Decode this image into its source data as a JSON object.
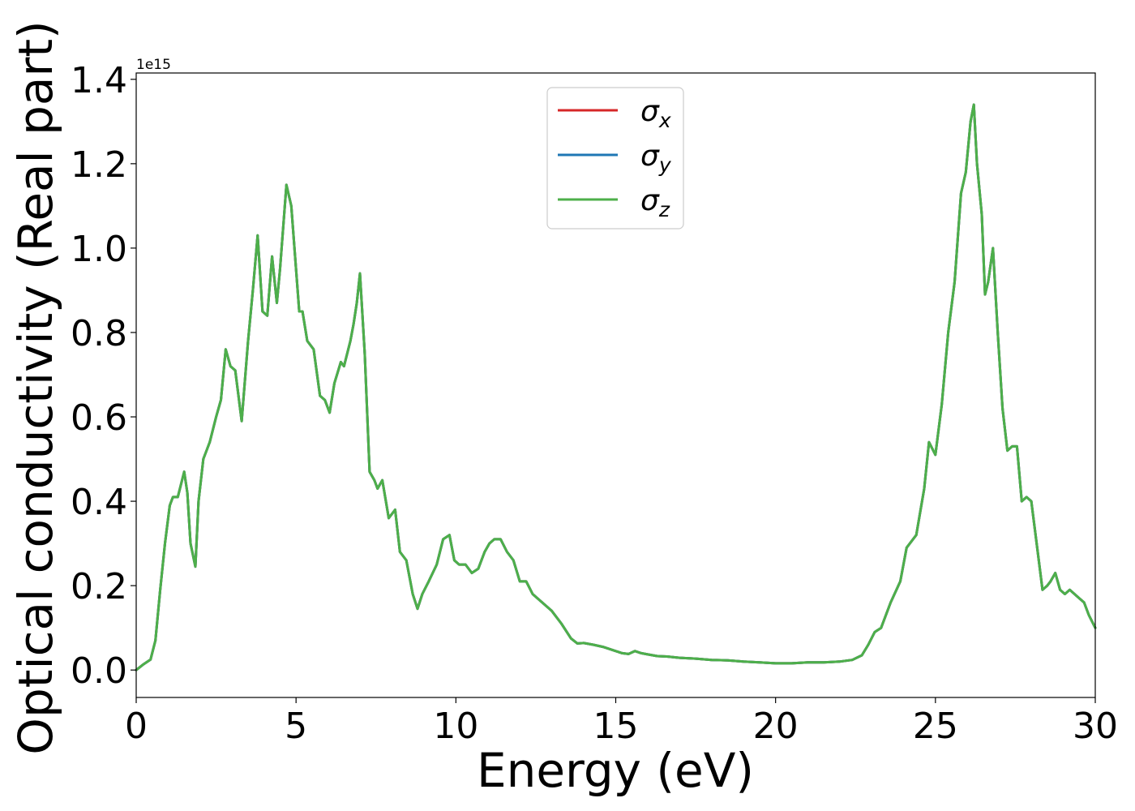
{
  "chart_data": {
    "type": "line",
    "xlabel": "Energy (eV)",
    "ylabel": "Optical conductivity (Real part)",
    "y_offset_label": "1e15",
    "xlim": [
      0,
      30
    ],
    "ylim": [
      -0.065,
      1.415
    ],
    "y_unit_multiplier": 1000000000000000.0,
    "xticks": [
      0,
      5,
      10,
      15,
      20,
      25,
      30
    ],
    "yticks": [
      0.0,
      0.2,
      0.4,
      0.6,
      0.8,
      1.0,
      1.2,
      1.4
    ],
    "ytick_labels": [
      "0.0",
      "0.2",
      "0.4",
      "0.6",
      "0.8",
      "1.0",
      "1.2",
      "1.4"
    ],
    "grid": false,
    "legend_position": "top-center",
    "x": [
      0.0,
      0.2,
      0.45,
      0.6,
      0.75,
      0.9,
      1.05,
      1.15,
      1.3,
      1.5,
      1.6,
      1.7,
      1.85,
      1.95,
      2.1,
      2.3,
      2.5,
      2.65,
      2.8,
      2.95,
      3.1,
      3.3,
      3.5,
      3.65,
      3.8,
      3.95,
      4.1,
      4.25,
      4.4,
      4.5,
      4.7,
      4.85,
      4.95,
      5.1,
      5.2,
      5.35,
      5.55,
      5.75,
      5.9,
      6.05,
      6.2,
      6.4,
      6.5,
      6.7,
      6.8,
      6.9,
      7.0,
      7.15,
      7.3,
      7.45,
      7.55,
      7.7,
      7.9,
      8.1,
      8.25,
      8.45,
      8.65,
      8.8,
      8.95,
      9.15,
      9.4,
      9.6,
      9.8,
      9.95,
      10.1,
      10.3,
      10.5,
      10.7,
      10.9,
      11.05,
      11.2,
      11.4,
      11.6,
      11.8,
      12.0,
      12.2,
      12.4,
      12.7,
      13.0,
      13.3,
      13.6,
      13.8,
      14.0,
      14.3,
      14.6,
      15.0,
      15.2,
      15.4,
      15.6,
      15.8,
      16.0,
      16.3,
      16.6,
      17.0,
      17.5,
      18.0,
      18.5,
      19.0,
      19.5,
      20.0,
      20.5,
      21.0,
      21.5,
      22.0,
      22.4,
      22.7,
      22.9,
      23.1,
      23.3,
      23.6,
      23.9,
      24.1,
      24.4,
      24.65,
      24.8,
      25.0,
      25.2,
      25.4,
      25.6,
      25.8,
      25.95,
      26.1,
      26.2,
      26.3,
      26.45,
      26.55,
      26.65,
      26.8,
      26.95,
      27.1,
      27.25,
      27.4,
      27.55,
      27.7,
      27.85,
      28.0,
      28.2,
      28.35,
      28.5,
      28.6,
      28.75,
      28.9,
      29.05,
      29.2,
      29.35,
      29.5,
      29.65,
      29.8,
      30.0
    ],
    "series": [
      {
        "name": "σx",
        "color": "#d62728",
        "values": [
          0.0,
          0.012,
          0.025,
          0.07,
          0.19,
          0.3,
          0.39,
          0.41,
          0.41,
          0.47,
          0.42,
          0.3,
          0.245,
          0.4,
          0.5,
          0.54,
          0.6,
          0.64,
          0.76,
          0.72,
          0.71,
          0.59,
          0.78,
          0.9,
          1.03,
          0.85,
          0.84,
          0.98,
          0.87,
          0.95,
          1.15,
          1.1,
          1.0,
          0.85,
          0.85,
          0.78,
          0.76,
          0.65,
          0.64,
          0.61,
          0.68,
          0.73,
          0.72,
          0.78,
          0.82,
          0.87,
          0.94,
          0.75,
          0.47,
          0.45,
          0.43,
          0.45,
          0.36,
          0.38,
          0.28,
          0.26,
          0.18,
          0.145,
          0.18,
          0.21,
          0.25,
          0.31,
          0.32,
          0.26,
          0.25,
          0.25,
          0.23,
          0.24,
          0.28,
          0.3,
          0.31,
          0.31,
          0.28,
          0.26,
          0.21,
          0.21,
          0.18,
          0.16,
          0.14,
          0.11,
          0.075,
          0.063,
          0.064,
          0.06,
          0.055,
          0.045,
          0.04,
          0.038,
          0.045,
          0.04,
          0.037,
          0.033,
          0.032,
          0.029,
          0.027,
          0.024,
          0.023,
          0.02,
          0.018,
          0.016,
          0.016,
          0.018,
          0.018,
          0.02,
          0.024,
          0.035,
          0.06,
          0.09,
          0.1,
          0.16,
          0.21,
          0.29,
          0.32,
          0.43,
          0.54,
          0.51,
          0.63,
          0.8,
          0.92,
          1.13,
          1.18,
          1.3,
          1.34,
          1.2,
          1.08,
          0.89,
          0.92,
          1.0,
          0.8,
          0.62,
          0.52,
          0.53,
          0.53,
          0.4,
          0.41,
          0.4,
          0.28,
          0.19,
          0.2,
          0.21,
          0.23,
          0.19,
          0.18,
          0.19,
          0.18,
          0.17,
          0.16,
          0.13,
          0.1
        ]
      },
      {
        "name": "σy",
        "color": "#1f77b4",
        "values": [
          0.0,
          0.012,
          0.025,
          0.07,
          0.19,
          0.3,
          0.39,
          0.41,
          0.41,
          0.47,
          0.42,
          0.3,
          0.245,
          0.4,
          0.5,
          0.54,
          0.6,
          0.64,
          0.76,
          0.72,
          0.71,
          0.59,
          0.78,
          0.9,
          1.03,
          0.85,
          0.84,
          0.98,
          0.87,
          0.95,
          1.15,
          1.1,
          1.0,
          0.85,
          0.85,
          0.78,
          0.76,
          0.65,
          0.64,
          0.61,
          0.68,
          0.73,
          0.72,
          0.78,
          0.82,
          0.87,
          0.94,
          0.75,
          0.47,
          0.45,
          0.43,
          0.45,
          0.36,
          0.38,
          0.28,
          0.26,
          0.18,
          0.145,
          0.18,
          0.21,
          0.25,
          0.31,
          0.32,
          0.26,
          0.25,
          0.25,
          0.23,
          0.24,
          0.28,
          0.3,
          0.31,
          0.31,
          0.28,
          0.26,
          0.21,
          0.21,
          0.18,
          0.16,
          0.14,
          0.11,
          0.075,
          0.063,
          0.064,
          0.06,
          0.055,
          0.045,
          0.04,
          0.038,
          0.045,
          0.04,
          0.037,
          0.033,
          0.032,
          0.029,
          0.027,
          0.024,
          0.023,
          0.02,
          0.018,
          0.016,
          0.016,
          0.018,
          0.018,
          0.02,
          0.024,
          0.035,
          0.06,
          0.09,
          0.1,
          0.16,
          0.21,
          0.29,
          0.32,
          0.43,
          0.54,
          0.51,
          0.63,
          0.8,
          0.92,
          1.13,
          1.18,
          1.3,
          1.34,
          1.2,
          1.08,
          0.89,
          0.92,
          1.0,
          0.8,
          0.62,
          0.52,
          0.53,
          0.53,
          0.4,
          0.41,
          0.4,
          0.28,
          0.19,
          0.2,
          0.21,
          0.23,
          0.19,
          0.18,
          0.19,
          0.18,
          0.17,
          0.16,
          0.13,
          0.1
        ]
      },
      {
        "name": "σz",
        "color": "#4daf4a",
        "values": [
          0.0,
          0.012,
          0.025,
          0.07,
          0.19,
          0.3,
          0.39,
          0.41,
          0.41,
          0.47,
          0.42,
          0.3,
          0.245,
          0.4,
          0.5,
          0.54,
          0.6,
          0.64,
          0.76,
          0.72,
          0.71,
          0.59,
          0.78,
          0.9,
          1.03,
          0.85,
          0.84,
          0.98,
          0.87,
          0.95,
          1.15,
          1.1,
          1.0,
          0.85,
          0.85,
          0.78,
          0.76,
          0.65,
          0.64,
          0.61,
          0.68,
          0.73,
          0.72,
          0.78,
          0.82,
          0.87,
          0.94,
          0.75,
          0.47,
          0.45,
          0.43,
          0.45,
          0.36,
          0.38,
          0.28,
          0.26,
          0.18,
          0.145,
          0.18,
          0.21,
          0.25,
          0.31,
          0.32,
          0.26,
          0.25,
          0.25,
          0.23,
          0.24,
          0.28,
          0.3,
          0.31,
          0.31,
          0.28,
          0.26,
          0.21,
          0.21,
          0.18,
          0.16,
          0.14,
          0.11,
          0.075,
          0.063,
          0.064,
          0.06,
          0.055,
          0.045,
          0.04,
          0.038,
          0.045,
          0.04,
          0.037,
          0.033,
          0.032,
          0.029,
          0.027,
          0.024,
          0.023,
          0.02,
          0.018,
          0.016,
          0.016,
          0.018,
          0.018,
          0.02,
          0.024,
          0.035,
          0.06,
          0.09,
          0.1,
          0.16,
          0.21,
          0.29,
          0.32,
          0.43,
          0.54,
          0.51,
          0.63,
          0.8,
          0.92,
          1.13,
          1.18,
          1.3,
          1.34,
          1.2,
          1.08,
          0.89,
          0.92,
          1.0,
          0.8,
          0.62,
          0.52,
          0.53,
          0.53,
          0.4,
          0.41,
          0.4,
          0.28,
          0.19,
          0.2,
          0.21,
          0.23,
          0.19,
          0.18,
          0.19,
          0.18,
          0.17,
          0.16,
          0.13,
          0.1
        ]
      }
    ]
  }
}
